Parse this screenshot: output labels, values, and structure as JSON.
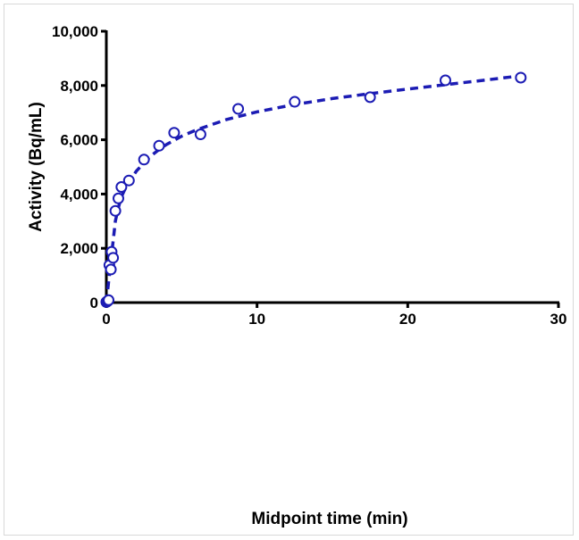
{
  "chart_data": {
    "type": "scatter",
    "title": "",
    "xlabel": "Midpoint time (min)",
    "ylabel": "Activity (Bq/mL)",
    "xlim": [
      0,
      30
    ],
    "ylim": [
      0,
      10000
    ],
    "xticks": [
      0,
      10,
      20,
      30
    ],
    "xtick_labels": [
      "0",
      "10",
      "20",
      "30"
    ],
    "yticks": [
      0,
      2000,
      4000,
      6000,
      8000,
      10000
    ],
    "ytick_labels": [
      "0",
      "2,000",
      "4,000",
      "6,000",
      "8,000",
      "10,000"
    ],
    "grid": false,
    "legend": "none",
    "marker": "open-circle",
    "color": "#1c1cb4",
    "series": [
      {
        "marker": "open-circle",
        "points": [
          {
            "x": 0.0,
            "y": 20
          },
          {
            "x": 0.05,
            "y": 40
          },
          {
            "x": 0.1,
            "y": 60
          },
          {
            "x": 0.15,
            "y": 90
          },
          {
            "x": 0.2,
            "y": 1380
          },
          {
            "x": 0.3,
            "y": 1220
          },
          {
            "x": 0.35,
            "y": 1870
          },
          {
            "x": 0.45,
            "y": 1650
          },
          {
            "x": 0.6,
            "y": 3380
          },
          {
            "x": 0.8,
            "y": 3840
          },
          {
            "x": 1.0,
            "y": 4260
          },
          {
            "x": 1.5,
            "y": 4500
          },
          {
            "x": 2.5,
            "y": 5270
          },
          {
            "x": 3.5,
            "y": 5780
          },
          {
            "x": 4.5,
            "y": 6260
          },
          {
            "x": 6.25,
            "y": 6200
          },
          {
            "x": 8.75,
            "y": 7140
          },
          {
            "x": 12.5,
            "y": 7400
          },
          {
            "x": 17.5,
            "y": 7570
          },
          {
            "x": 22.5,
            "y": 8190
          },
          {
            "x": 27.5,
            "y": 8290
          }
        ]
      },
      {
        "line": "dashed",
        "x": [
          0,
          0.05,
          0.1,
          0.15,
          0.2,
          0.3,
          0.4,
          0.5,
          0.6,
          0.8,
          1.0,
          1.25,
          1.5,
          2.0,
          2.5,
          3.0,
          3.5,
          4.0,
          5.0,
          6.0,
          8.0,
          10.0,
          12.5,
          15.0,
          17.5,
          20.0,
          22.5,
          25.0,
          27.5
        ],
        "y": [
          0,
          250,
          500,
          750,
          1000,
          1500,
          2000,
          2500,
          3000,
          3500,
          3900,
          4200,
          4450,
          4850,
          5150,
          5420,
          5640,
          5830,
          6130,
          6370,
          6750,
          7030,
          7300,
          7520,
          7700,
          7870,
          8030,
          8190,
          8360
        ]
      }
    ]
  }
}
